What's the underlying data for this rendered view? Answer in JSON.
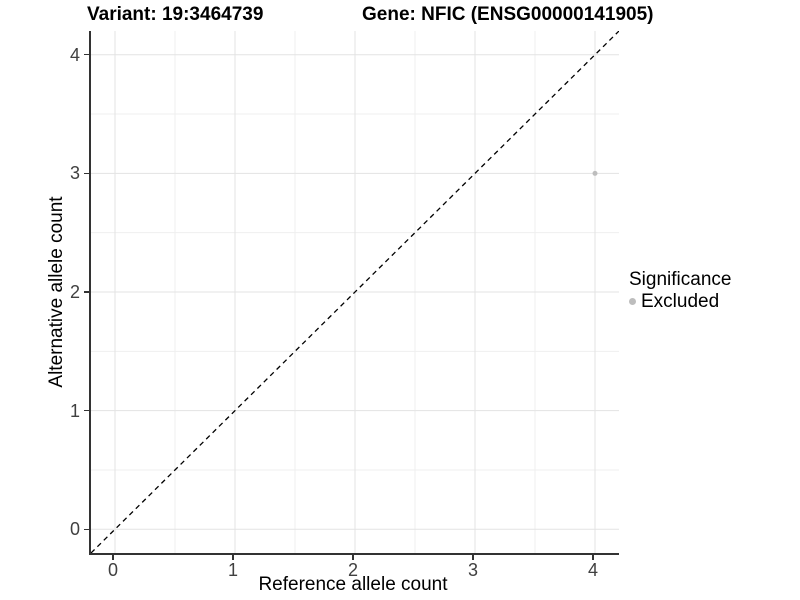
{
  "chart_data": {
    "type": "scatter",
    "title_left": "Variant: 19:3464739",
    "title_right": "Gene: NFIC (ENSG00000141905)",
    "xlabel": "Reference allele count",
    "ylabel": "Alternative allele count",
    "xlim": [
      -0.2,
      4.2
    ],
    "ylim": [
      -0.2,
      4.2
    ],
    "x_ticks": [
      0,
      1,
      2,
      3,
      4
    ],
    "y_ticks": [
      0,
      1,
      2,
      3,
      4
    ],
    "x_minor_ticks": [
      0.5,
      1.5,
      2.5,
      3.5
    ],
    "y_minor_ticks": [
      0.5,
      1.5,
      2.5,
      3.5
    ],
    "grid": true,
    "points": [
      {
        "x": 4,
        "y": 3,
        "significance": "Excluded",
        "color": "#bdbdbd",
        "radius": 2.5
      }
    ],
    "identity_line": {
      "slope": 1,
      "intercept": 0,
      "style": "dashed",
      "color": "#000000"
    },
    "legend": {
      "title": "Significance",
      "position": "right",
      "entries": [
        {
          "label": "Excluded",
          "color": "#bdbdbd",
          "marker": "circle"
        }
      ]
    },
    "colors": {
      "background": "#ffffff",
      "axis_line": "#333333",
      "tick_label": "#404040",
      "grid_major": "#e3e3e3",
      "grid_minor": "#efefef"
    }
  }
}
